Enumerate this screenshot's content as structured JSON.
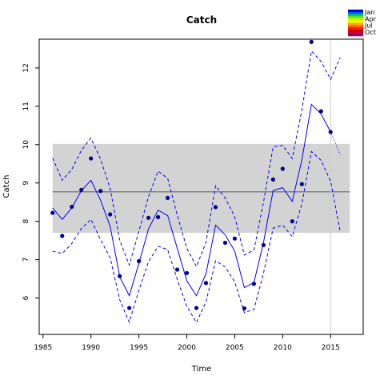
{
  "chart_data": {
    "type": "line",
    "title": "Catch",
    "xlabel": "Time",
    "ylabel": "Catch",
    "xlim": [
      1984.6,
      2018.4
    ],
    "ylim": [
      5.05,
      12.75
    ],
    "xticks": [
      1985,
      1990,
      1995,
      2000,
      2005,
      2010,
      2015
    ],
    "yticks": [
      6,
      7,
      8,
      9,
      10,
      11,
      12
    ],
    "grid": false,
    "legend_position": "top-right",
    "legend": {
      "labels": [
        "Jan",
        "Apr",
        "Jul",
        "Oct"
      ],
      "colors": [
        "#0000cc",
        "#0055ff",
        "#00cc66",
        "#66ee00",
        "#ccff00",
        "#ffee00",
        "#ffaa00",
        "#ff6600",
        "#ff2200",
        "#dd0000",
        "#bb0033",
        "#990066"
      ]
    },
    "reference": {
      "mean": 8.77,
      "band_low": 7.7,
      "band_high": 10.02,
      "x_range": [
        1986,
        2017
      ],
      "band_color": "#d3d3d3",
      "mean_color": "#808080"
    },
    "vline": {
      "x": 2015,
      "color": "#cccccc"
    },
    "x": [
      1986,
      1987,
      1988,
      1989,
      1990,
      1991,
      1992,
      1993,
      1994,
      1995,
      1996,
      1997,
      1998,
      1999,
      2000,
      2001,
      2002,
      2003,
      2004,
      2005,
      2006,
      2007,
      2008,
      2009,
      2010,
      2011,
      2012,
      2013,
      2014,
      2015
    ],
    "series": [
      {
        "name": "observed",
        "color": "#00008b",
        "x": [
          1986,
          1987,
          1988,
          1989,
          1990,
          1991,
          1992,
          1993,
          1994,
          1995,
          1996,
          1997,
          1998,
          1999,
          2000,
          2001,
          2002,
          2003,
          2004,
          2005,
          2006,
          2007,
          2008,
          2009,
          2010,
          2011,
          2012,
          2013,
          2014,
          2015
        ],
        "values": [
          8.22,
          7.62,
          8.38,
          8.82,
          9.64,
          8.79,
          8.18,
          6.57,
          5.74,
          6.96,
          8.09,
          8.11,
          8.61,
          6.74,
          6.65,
          5.74,
          6.39,
          8.37,
          7.44,
          7.55,
          5.73,
          6.37,
          7.38,
          9.09,
          9.37,
          8.0,
          8.97,
          12.68,
          10.87,
          10.33
        ]
      },
      {
        "name": "fitted",
        "color": "#0000ff",
        "x": [
          1986,
          1987,
          1988,
          1989,
          1990,
          1991,
          1992,
          1993,
          1994,
          1995,
          1996,
          1997,
          1998,
          1999,
          2000,
          2001,
          2002,
          2003,
          2004,
          2005,
          2006,
          2007,
          2008,
          2009,
          2010,
          2011,
          2012,
          2013,
          2014,
          2015
        ],
        "values": [
          8.35,
          8.05,
          8.35,
          8.8,
          9.07,
          8.55,
          7.87,
          6.55,
          6.06,
          6.9,
          7.8,
          8.29,
          8.15,
          7.3,
          6.45,
          6.06,
          6.63,
          7.9,
          7.65,
          7.22,
          6.27,
          6.4,
          7.45,
          8.8,
          8.88,
          8.52,
          9.6,
          11.05,
          10.8,
          10.33
        ]
      },
      {
        "name": "upper",
        "color": "#0000ff",
        "dash": true,
        "x": [
          1986,
          1987,
          1988,
          1989,
          1990,
          1991,
          1992,
          1993,
          1994,
          1995,
          1996,
          1997,
          1998,
          1999,
          2000,
          2001,
          2002,
          2003,
          2004,
          2005,
          2006,
          2007,
          2008,
          2009,
          2010,
          2011,
          2012,
          2013,
          2014,
          2015,
          2016
        ],
        "values": [
          9.65,
          9.07,
          9.35,
          9.85,
          10.17,
          9.62,
          8.86,
          7.5,
          6.86,
          7.74,
          8.64,
          9.31,
          9.12,
          8.17,
          7.3,
          6.82,
          7.45,
          8.93,
          8.61,
          8.12,
          7.12,
          7.25,
          8.5,
          9.94,
          9.98,
          9.64,
          10.9,
          12.44,
          12.17,
          11.7,
          12.27
        ]
      },
      {
        "name": "lower",
        "color": "#0000ff",
        "dash": true,
        "x": [
          1986,
          1987,
          1988,
          1989,
          1990,
          1991,
          1992,
          1993,
          1994,
          1995,
          1996,
          1997,
          1998,
          1999,
          2000,
          2001,
          2002,
          2003,
          2004,
          2005,
          2006,
          2007,
          2008,
          2009,
          2010,
          2011,
          2012,
          2013,
          2014,
          2015,
          2016
        ],
        "values": [
          7.22,
          7.16,
          7.42,
          7.81,
          8.05,
          7.52,
          7.05,
          5.95,
          5.37,
          6.2,
          6.94,
          7.35,
          7.26,
          6.49,
          5.78,
          5.36,
          5.9,
          6.97,
          6.81,
          6.42,
          5.62,
          5.7,
          6.65,
          7.82,
          7.9,
          7.6,
          8.45,
          9.82,
          9.59,
          9.04,
          7.74
        ]
      },
      {
        "name": "forecast",
        "color": "#0000ff",
        "dotted": true,
        "x": [
          2015,
          2016
        ],
        "values": [
          10.33,
          9.74
        ]
      }
    ]
  }
}
